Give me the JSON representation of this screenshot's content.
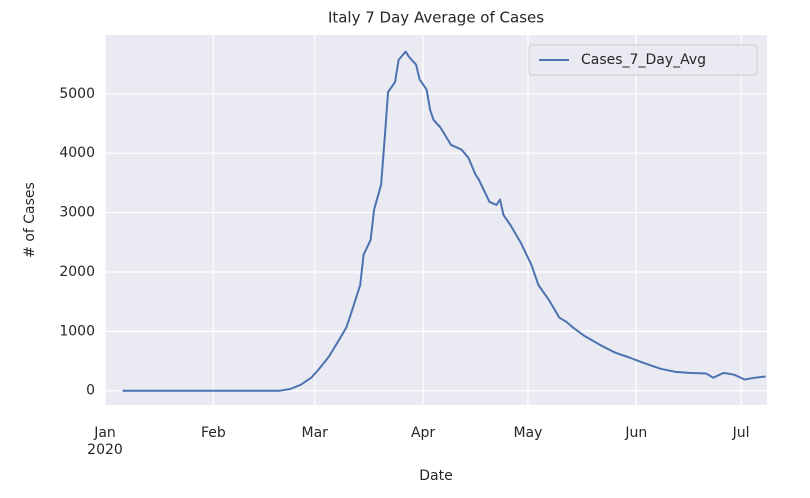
{
  "chart_data": {
    "type": "line",
    "title": "Italy 7 Day Average of Cases",
    "x_label": "Date",
    "y_label": "# of Cases",
    "x": [
      5,
      20,
      35,
      50,
      53,
      56,
      59,
      61,
      64,
      67,
      69,
      70,
      73,
      74,
      76,
      77,
      79,
      80,
      81,
      83,
      84,
      86,
      87,
      89,
      90,
      92,
      93,
      94,
      96,
      99,
      102,
      104,
      106,
      107,
      110,
      112,
      113,
      114,
      116,
      119,
      122,
      124,
      127,
      130,
      132,
      134,
      137,
      142,
      146,
      150,
      154,
      159,
      163,
      167,
      172,
      174,
      177,
      180,
      183,
      186,
      189
    ],
    "series": [
      {
        "name": "Cases_7_Day_Avg",
        "color": "#4c72b0",
        "values": [
          0,
          0,
          0,
          0,
          30,
          100,
          220,
          350,
          570,
          860,
          1060,
          1230,
          1780,
          2290,
          2540,
          3050,
          3470,
          4230,
          5030,
          5200,
          5570,
          5710,
          5620,
          5490,
          5240,
          5070,
          4730,
          4560,
          4430,
          4140,
          4060,
          3920,
          3640,
          3550,
          3180,
          3130,
          3220,
          2960,
          2790,
          2490,
          2120,
          1780,
          1530,
          1230,
          1160,
          1060,
          930,
          760,
          640,
          560,
          470,
          370,
          320,
          300,
          290,
          220,
          300,
          270,
          190,
          220,
          240
        ]
      }
    ],
    "xlim": [
      0,
      189.4
    ],
    "xticks": [
      {
        "value": 0,
        "label": "Jan\n2020"
      },
      {
        "value": 31,
        "label": "Feb"
      },
      {
        "value": 60,
        "label": "Mar"
      },
      {
        "value": 91,
        "label": "Apr"
      },
      {
        "value": 121,
        "label": "May"
      },
      {
        "value": 152,
        "label": "Jun"
      },
      {
        "value": 182,
        "label": "Jul"
      }
    ],
    "ylim": [
      -240,
      5990
    ],
    "yticks": [
      0,
      1000,
      2000,
      3000,
      4000,
      5000
    ],
    "grid": true,
    "legend": "upper right"
  }
}
